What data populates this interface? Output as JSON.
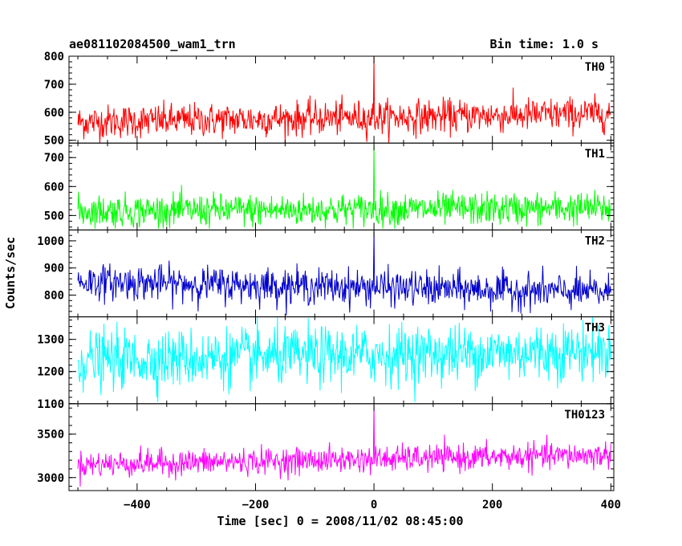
{
  "chart_data": {
    "type": "line",
    "title": "ae081102084500_wam1_trn",
    "subtitle": "Bin time: 1.0 s",
    "xlabel": "Time [sec] 0 = 2008/11/02 08:45:00",
    "ylabel": "Counts/sec",
    "xlim": [
      -515,
      405
    ],
    "x_ticks": [
      -400,
      -200,
      0,
      200,
      400
    ],
    "x_tick_labels": [
      "−400",
      "−200",
      "0",
      "200",
      "400"
    ],
    "x_range": [
      -500,
      400
    ],
    "bin_time": 1.0,
    "grid": false,
    "panels": [
      {
        "label": "TH0",
        "color": "#ff0000",
        "ylim": [
          490,
          800
        ],
        "y_ticks": [
          500,
          600,
          700,
          800
        ],
        "y_tick_labels": [
          "500",
          "600",
          "700",
          "800"
        ],
        "mean_start": 565,
        "mean_end": 595,
        "noise": 30,
        "spike_x": 0,
        "spike_y": 800,
        "dip_min": 490
      },
      {
        "label": "TH1",
        "color": "#00ff00",
        "ylim": [
          450,
          750
        ],
        "y_ticks": [
          500,
          600,
          700
        ],
        "y_tick_labels": [
          "500",
          "600",
          "700"
        ],
        "mean_start": 515,
        "mean_end": 525,
        "noise": 28,
        "spike_x": 0,
        "spike_y": 745,
        "dip_min": 455
      },
      {
        "label": "TH2",
        "color": "#0000cc",
        "ylim": [
          720,
          1040
        ],
        "y_ticks": [
          800,
          900,
          1000
        ],
        "y_tick_labels": [
          "800",
          "900",
          "1000"
        ],
        "mean_start": 850,
        "mean_end": 810,
        "noise": 32,
        "spike_x": 0,
        "spike_y": 1035,
        "dip_min": 725
      },
      {
        "label": "TH3",
        "color": "#00ffff",
        "ylim": [
          1100,
          1370
        ],
        "y_ticks": [
          1100,
          1200,
          1300
        ],
        "y_tick_labels": [
          "1100",
          "1200",
          "1300"
        ],
        "mean_start": 1235,
        "mean_end": 1265,
        "noise": 45,
        "spike_x": null,
        "spike_y": null,
        "dip_min": 1105
      },
      {
        "label": "TH0123",
        "color": "#ff00ff",
        "ylim": [
          2850,
          3850
        ],
        "y_ticks": [
          3000,
          3500
        ],
        "y_tick_labels": [
          "3000",
          "3500"
        ],
        "mean_start": 3150,
        "mean_end": 3260,
        "noise": 75,
        "spike_x": 0,
        "spike_y": 3850,
        "dip_min": 2870
      }
    ]
  }
}
